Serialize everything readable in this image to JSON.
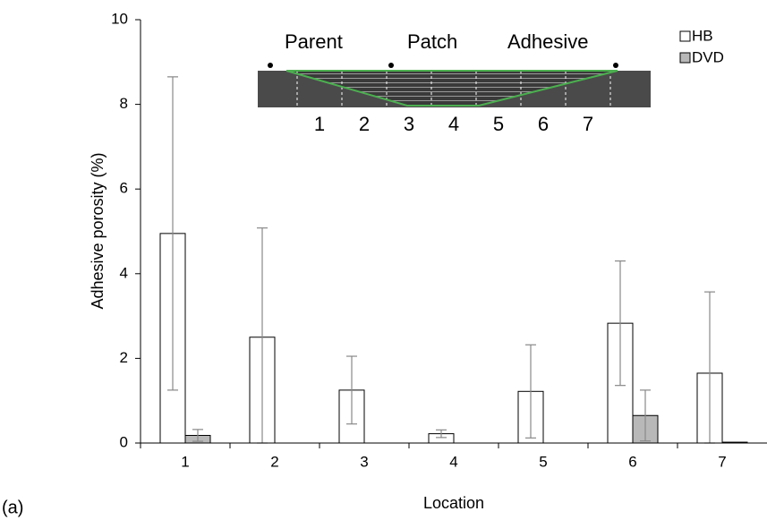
{
  "chart_data": {
    "type": "bar",
    "categories": [
      "1",
      "2",
      "3",
      "4",
      "5",
      "6",
      "7"
    ],
    "series": [
      {
        "name": "HB",
        "color": "#ffffff",
        "values": [
          4.95,
          2.5,
          1.25,
          0.22,
          1.22,
          2.83,
          1.65
        ],
        "errors": [
          3.7,
          2.58,
          0.8,
          0.09,
          1.1,
          1.47,
          1.92
        ]
      },
      {
        "name": "DVD",
        "color": "#b8b8b8",
        "values": [
          0.18,
          0,
          0,
          0,
          0,
          0.65,
          0.02
        ],
        "errors": [
          0.14,
          0,
          0,
          0,
          0,
          0.6,
          0
        ]
      }
    ],
    "ylim": [
      0,
      10
    ],
    "yticks": [
      0,
      2,
      4,
      6,
      8,
      10
    ],
    "y_label": "Adhesive porosity (%)",
    "x_label": "Location",
    "panel_label": "(a)",
    "inset": {
      "labels": [
        "Parent",
        "Patch",
        "Adhesive"
      ],
      "numbers": [
        "1",
        "2",
        "3",
        "4",
        "5",
        "6",
        "7"
      ]
    }
  }
}
